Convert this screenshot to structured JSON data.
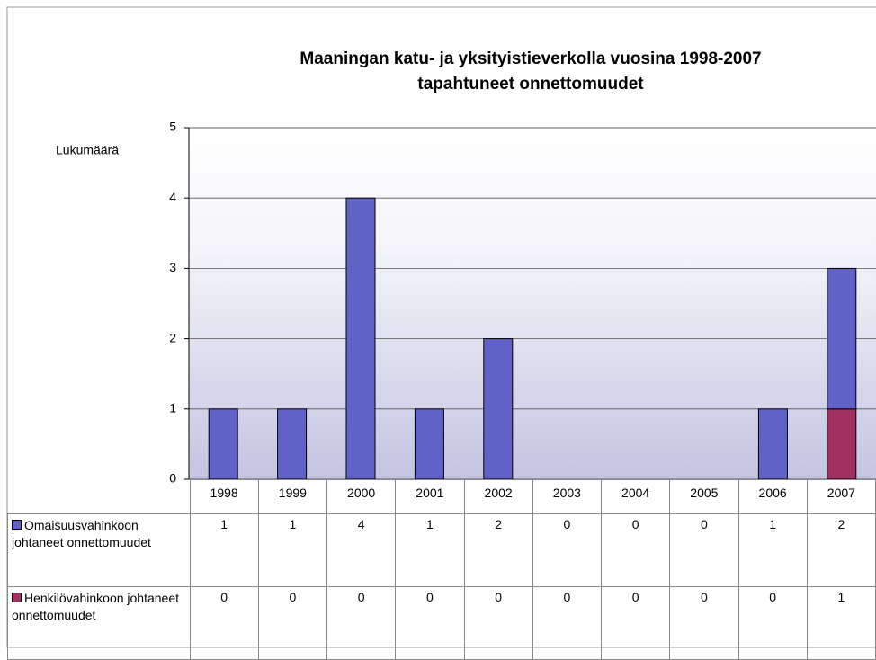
{
  "chart_data": {
    "type": "stacked_bar",
    "title": [
      "Maaningan katu- ja yksityistieverkolla vuosina 1998-2007",
      "tapahtuneet onnettomuudet"
    ],
    "y_label": "Lukumäärä",
    "categories": [
      "1998",
      "1999",
      "2000",
      "2001",
      "2002",
      "2003",
      "2004",
      "2005",
      "2006",
      "2007"
    ],
    "series": [
      {
        "name": "Omaisuusvahinkoon johtaneet onnettomuudet",
        "color": "#6062c8",
        "values": [
          1,
          1,
          4,
          1,
          2,
          0,
          0,
          0,
          1,
          2
        ]
      },
      {
        "name": "Henkilövahinkoon johtaneet onnettomuudet",
        "color": "#a03060",
        "values": [
          0,
          0,
          0,
          0,
          0,
          0,
          0,
          0,
          0,
          1
        ]
      }
    ],
    "ylim": [
      0,
      5
    ],
    "yticks": [
      0,
      1,
      2,
      3,
      4,
      5
    ],
    "grid": true
  }
}
